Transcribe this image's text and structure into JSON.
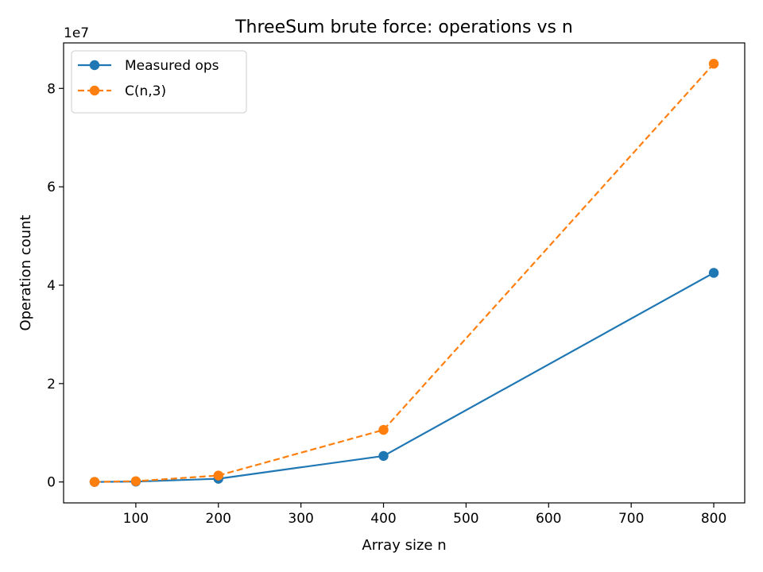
{
  "chart_data": {
    "type": "line",
    "title": "ThreeSum brute force: operations vs n",
    "xlabel": "Array size n",
    "ylabel": "Operation count",
    "y_offset_text": "1e7",
    "xlim": [
      12.5,
      837.5
    ],
    "ylim": [
      -4250000,
      89250000
    ],
    "xticks": [
      100,
      200,
      300,
      400,
      500,
      600,
      700,
      800
    ],
    "yticks": [
      0,
      20000000,
      40000000,
      60000000,
      80000000
    ],
    "ytick_labels": [
      "0",
      "2",
      "4",
      "6",
      "8"
    ],
    "x": [
      50,
      100,
      200,
      400,
      800
    ],
    "series": [
      {
        "name": "Measured ops",
        "values": [
          9800,
          80850,
          656700,
          5293400,
          42506800
        ],
        "color": "#1f77b4",
        "linestyle": "solid",
        "marker": "circle"
      },
      {
        "name": "C(n,3)",
        "values": [
          19600,
          161700,
          1313400,
          10586800,
          85013600
        ],
        "color": "#ff7f0e",
        "linestyle": "dashed",
        "marker": "circle"
      }
    ],
    "legend_position": "top-left",
    "grid": false
  }
}
